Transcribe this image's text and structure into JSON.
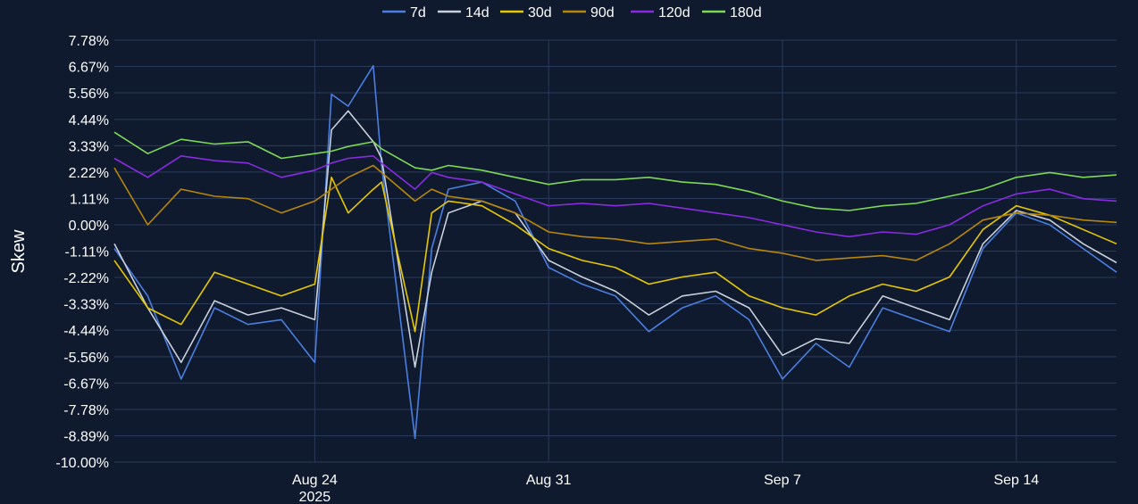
{
  "chart_data": {
    "type": "line",
    "ylabel": "Skew",
    "legend_position": "top-center",
    "grid": true,
    "background": "#0f1a2e",
    "grid_color": "#2a3a5a",
    "x_ticks": [
      {
        "date": "2025-08-24",
        "label": "Aug 24",
        "sublabel": "2025"
      },
      {
        "date": "2025-08-31",
        "label": "Aug 31",
        "sublabel": ""
      },
      {
        "date": "2025-09-07",
        "label": "Sep 7",
        "sublabel": ""
      },
      {
        "date": "2025-09-14",
        "label": "Sep 14",
        "sublabel": ""
      }
    ],
    "xlim": [
      "2025-08-18",
      "2025-09-17"
    ],
    "ylim": [
      -10.0,
      7.78
    ],
    "y_ticks": [
      "7.78%",
      "6.67%",
      "5.56%",
      "4.44%",
      "3.33%",
      "2.22%",
      "1.11%",
      "0.00%",
      "-1.11%",
      "-2.22%",
      "-3.33%",
      "-4.44%",
      "-5.56%",
      "-6.67%",
      "-7.78%",
      "-8.89%",
      "-10.00%"
    ],
    "y_tick_values": [
      7.78,
      6.67,
      5.56,
      4.44,
      3.33,
      2.22,
      1.11,
      0.0,
      -1.11,
      -2.22,
      -3.33,
      -4.44,
      -5.56,
      -6.67,
      -7.78,
      -8.89,
      -10.0
    ],
    "series": [
      {
        "name": "7d",
        "color": "#4a7fe0",
        "points": [
          [
            "2025-08-18",
            -1.0
          ],
          [
            "2025-08-19",
            -3.0
          ],
          [
            "2025-08-20",
            -6.5
          ],
          [
            "2025-08-21",
            -3.5
          ],
          [
            "2025-08-22",
            -4.2
          ],
          [
            "2025-08-23",
            -4.0
          ],
          [
            "2025-08-24",
            -5.8
          ],
          [
            "2025-08-24T12",
            5.5
          ],
          [
            "2025-08-25",
            5.0
          ],
          [
            "2025-08-25T18",
            6.7
          ],
          [
            "2025-08-26",
            2.5
          ],
          [
            "2025-08-27",
            -9.0
          ],
          [
            "2025-08-27T12",
            -1.0
          ],
          [
            "2025-08-28",
            1.5
          ],
          [
            "2025-08-29",
            1.8
          ],
          [
            "2025-08-30",
            1.0
          ],
          [
            "2025-08-31",
            -1.8
          ],
          [
            "2025-09-01",
            -2.5
          ],
          [
            "2025-09-02",
            -3.0
          ],
          [
            "2025-09-03",
            -4.5
          ],
          [
            "2025-09-04",
            -3.5
          ],
          [
            "2025-09-05",
            -3.0
          ],
          [
            "2025-09-06",
            -4.0
          ],
          [
            "2025-09-07",
            -6.5
          ],
          [
            "2025-09-08",
            -5.0
          ],
          [
            "2025-09-09",
            -6.0
          ],
          [
            "2025-09-10",
            -3.5
          ],
          [
            "2025-09-11",
            -4.0
          ],
          [
            "2025-09-12",
            -4.5
          ],
          [
            "2025-09-13",
            -1.0
          ],
          [
            "2025-09-14",
            0.5
          ],
          [
            "2025-09-15",
            0.0
          ],
          [
            "2025-09-16",
            -1.0
          ],
          [
            "2025-09-17",
            -2.0
          ]
        ]
      },
      {
        "name": "14d",
        "color": "#c8d0dc",
        "points": [
          [
            "2025-08-18",
            -0.8
          ],
          [
            "2025-08-19",
            -3.5
          ],
          [
            "2025-08-20",
            -5.8
          ],
          [
            "2025-08-21",
            -3.2
          ],
          [
            "2025-08-22",
            -3.8
          ],
          [
            "2025-08-23",
            -3.5
          ],
          [
            "2025-08-24",
            -4.0
          ],
          [
            "2025-08-24T12",
            4.0
          ],
          [
            "2025-08-25",
            4.8
          ],
          [
            "2025-08-25T18",
            3.5
          ],
          [
            "2025-08-26",
            2.8
          ],
          [
            "2025-08-27",
            -6.0
          ],
          [
            "2025-08-27T12",
            -2.0
          ],
          [
            "2025-08-28",
            0.5
          ],
          [
            "2025-08-29",
            1.0
          ],
          [
            "2025-08-30",
            0.5
          ],
          [
            "2025-08-31",
            -1.5
          ],
          [
            "2025-09-01",
            -2.2
          ],
          [
            "2025-09-02",
            -2.8
          ],
          [
            "2025-09-03",
            -3.8
          ],
          [
            "2025-09-04",
            -3.0
          ],
          [
            "2025-09-05",
            -2.8
          ],
          [
            "2025-09-06",
            -3.5
          ],
          [
            "2025-09-07",
            -5.5
          ],
          [
            "2025-09-08",
            -4.8
          ],
          [
            "2025-09-09",
            -5.0
          ],
          [
            "2025-09-10",
            -3.0
          ],
          [
            "2025-09-11",
            -3.5
          ],
          [
            "2025-09-12",
            -4.0
          ],
          [
            "2025-09-13",
            -0.8
          ],
          [
            "2025-09-14",
            0.6
          ],
          [
            "2025-09-15",
            0.2
          ],
          [
            "2025-09-16",
            -0.8
          ],
          [
            "2025-09-17",
            -1.6
          ]
        ]
      },
      {
        "name": "30d",
        "color": "#e8c800",
        "points": [
          [
            "2025-08-18",
            -1.5
          ],
          [
            "2025-08-19",
            -3.5
          ],
          [
            "2025-08-20",
            -4.2
          ],
          [
            "2025-08-21",
            -2.0
          ],
          [
            "2025-08-22",
            -2.5
          ],
          [
            "2025-08-23",
            -3.0
          ],
          [
            "2025-08-24",
            -2.5
          ],
          [
            "2025-08-24T12",
            2.0
          ],
          [
            "2025-08-25",
            0.5
          ],
          [
            "2025-08-25T18",
            1.5
          ],
          [
            "2025-08-26",
            1.8
          ],
          [
            "2025-08-27",
            -4.5
          ],
          [
            "2025-08-27T12",
            0.5
          ],
          [
            "2025-08-28",
            1.0
          ],
          [
            "2025-08-29",
            0.8
          ],
          [
            "2025-08-30",
            0.0
          ],
          [
            "2025-08-31",
            -1.0
          ],
          [
            "2025-09-01",
            -1.5
          ],
          [
            "2025-09-02",
            -1.8
          ],
          [
            "2025-09-03",
            -2.5
          ],
          [
            "2025-09-04",
            -2.2
          ],
          [
            "2025-09-05",
            -2.0
          ],
          [
            "2025-09-06",
            -3.0
          ],
          [
            "2025-09-07",
            -3.5
          ],
          [
            "2025-09-08",
            -3.8
          ],
          [
            "2025-09-09",
            -3.0
          ],
          [
            "2025-09-10",
            -2.5
          ],
          [
            "2025-09-11",
            -2.8
          ],
          [
            "2025-09-12",
            -2.2
          ],
          [
            "2025-09-13",
            -0.2
          ],
          [
            "2025-09-14",
            0.8
          ],
          [
            "2025-09-15",
            0.4
          ],
          [
            "2025-09-16",
            -0.2
          ],
          [
            "2025-09-17",
            -0.8
          ]
        ]
      },
      {
        "name": "90d",
        "color": "#b8860b",
        "points": [
          [
            "2025-08-18",
            2.4
          ],
          [
            "2025-08-19",
            0.0
          ],
          [
            "2025-08-20",
            1.5
          ],
          [
            "2025-08-21",
            1.2
          ],
          [
            "2025-08-22",
            1.1
          ],
          [
            "2025-08-23",
            0.5
          ],
          [
            "2025-08-24",
            1.0
          ],
          [
            "2025-08-24T12",
            1.5
          ],
          [
            "2025-08-25",
            2.0
          ],
          [
            "2025-08-25T18",
            2.5
          ],
          [
            "2025-08-26",
            2.2
          ],
          [
            "2025-08-27",
            1.0
          ],
          [
            "2025-08-27T12",
            1.5
          ],
          [
            "2025-08-28",
            1.2
          ],
          [
            "2025-08-29",
            1.0
          ],
          [
            "2025-08-30",
            0.5
          ],
          [
            "2025-08-31",
            -0.3
          ],
          [
            "2025-09-01",
            -0.5
          ],
          [
            "2025-09-02",
            -0.6
          ],
          [
            "2025-09-03",
            -0.8
          ],
          [
            "2025-09-04",
            -0.7
          ],
          [
            "2025-09-05",
            -0.6
          ],
          [
            "2025-09-06",
            -1.0
          ],
          [
            "2025-09-07",
            -1.2
          ],
          [
            "2025-09-08",
            -1.5
          ],
          [
            "2025-09-09",
            -1.4
          ],
          [
            "2025-09-10",
            -1.3
          ],
          [
            "2025-09-11",
            -1.5
          ],
          [
            "2025-09-12",
            -0.8
          ],
          [
            "2025-09-13",
            0.2
          ],
          [
            "2025-09-14",
            0.5
          ],
          [
            "2025-09-15",
            0.4
          ],
          [
            "2025-09-16",
            0.2
          ],
          [
            "2025-09-17",
            0.1
          ]
        ]
      },
      {
        "name": "120d",
        "color": "#8a2be2",
        "points": [
          [
            "2025-08-18",
            2.8
          ],
          [
            "2025-08-19",
            2.0
          ],
          [
            "2025-08-20",
            2.9
          ],
          [
            "2025-08-21",
            2.7
          ],
          [
            "2025-08-22",
            2.6
          ],
          [
            "2025-08-23",
            2.0
          ],
          [
            "2025-08-24",
            2.3
          ],
          [
            "2025-08-24T12",
            2.6
          ],
          [
            "2025-08-25",
            2.8
          ],
          [
            "2025-08-25T18",
            2.9
          ],
          [
            "2025-08-26",
            2.6
          ],
          [
            "2025-08-27",
            1.5
          ],
          [
            "2025-08-27T12",
            2.2
          ],
          [
            "2025-08-28",
            2.0
          ],
          [
            "2025-08-29",
            1.8
          ],
          [
            "2025-08-30",
            1.3
          ],
          [
            "2025-08-31",
            0.8
          ],
          [
            "2025-09-01",
            0.9
          ],
          [
            "2025-09-02",
            0.8
          ],
          [
            "2025-09-03",
            0.9
          ],
          [
            "2025-09-04",
            0.7
          ],
          [
            "2025-09-05",
            0.5
          ],
          [
            "2025-09-06",
            0.3
          ],
          [
            "2025-09-07",
            0.0
          ],
          [
            "2025-09-08",
            -0.3
          ],
          [
            "2025-09-09",
            -0.5
          ],
          [
            "2025-09-10",
            -0.3
          ],
          [
            "2025-09-11",
            -0.4
          ],
          [
            "2025-09-12",
            0.0
          ],
          [
            "2025-09-13",
            0.8
          ],
          [
            "2025-09-14",
            1.3
          ],
          [
            "2025-09-15",
            1.5
          ],
          [
            "2025-09-16",
            1.1
          ],
          [
            "2025-09-17",
            1.0
          ]
        ]
      },
      {
        "name": "180d",
        "color": "#7ed957",
        "points": [
          [
            "2025-08-18",
            3.9
          ],
          [
            "2025-08-19",
            3.0
          ],
          [
            "2025-08-20",
            3.6
          ],
          [
            "2025-08-21",
            3.4
          ],
          [
            "2025-08-22",
            3.5
          ],
          [
            "2025-08-23",
            2.8
          ],
          [
            "2025-08-24",
            3.0
          ],
          [
            "2025-08-24T12",
            3.1
          ],
          [
            "2025-08-25",
            3.3
          ],
          [
            "2025-08-25T18",
            3.5
          ],
          [
            "2025-08-26",
            3.2
          ],
          [
            "2025-08-27",
            2.4
          ],
          [
            "2025-08-27T12",
            2.3
          ],
          [
            "2025-08-28",
            2.5
          ],
          [
            "2025-08-29",
            2.3
          ],
          [
            "2025-08-30",
            2.0
          ],
          [
            "2025-08-31",
            1.7
          ],
          [
            "2025-09-01",
            1.9
          ],
          [
            "2025-09-02",
            1.9
          ],
          [
            "2025-09-03",
            2.0
          ],
          [
            "2025-09-04",
            1.8
          ],
          [
            "2025-09-05",
            1.7
          ],
          [
            "2025-09-06",
            1.4
          ],
          [
            "2025-09-07",
            1.0
          ],
          [
            "2025-09-08",
            0.7
          ],
          [
            "2025-09-09",
            0.6
          ],
          [
            "2025-09-10",
            0.8
          ],
          [
            "2025-09-11",
            0.9
          ],
          [
            "2025-09-12",
            1.2
          ],
          [
            "2025-09-13",
            1.5
          ],
          [
            "2025-09-14",
            2.0
          ],
          [
            "2025-09-15",
            2.2
          ],
          [
            "2025-09-16",
            2.0
          ],
          [
            "2025-09-17",
            2.1
          ]
        ]
      }
    ]
  }
}
